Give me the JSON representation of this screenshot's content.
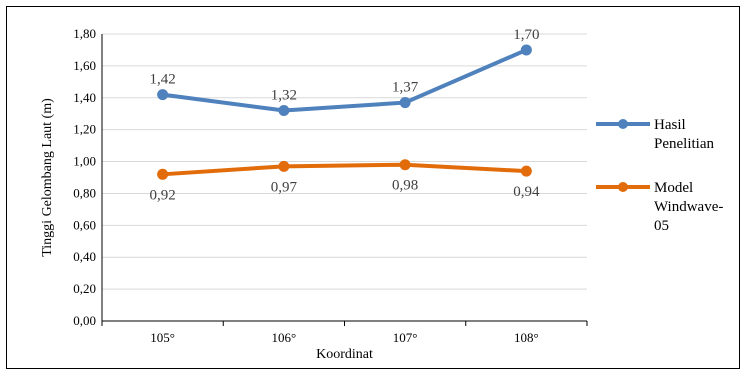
{
  "chart_data": {
    "type": "line",
    "title": "",
    "xlabel": "Koordinat",
    "ylabel": "Tinggi Gelombang Laut (m)",
    "categories": [
      "105°",
      "106°",
      "107°",
      "108°"
    ],
    "ylim": [
      0,
      1.8
    ],
    "yticks": [
      "0,00",
      "0,20",
      "0,40",
      "0,60",
      "0,80",
      "1,00",
      "1,20",
      "1,40",
      "1,60",
      "1,80"
    ],
    "grid": true,
    "legend_position": "right",
    "series": [
      {
        "name": "Hasil Penelitian",
        "legend_lines": [
          "Hasil",
          "Penelitian"
        ],
        "color": "#4f81bd",
        "values": [
          1.42,
          1.32,
          1.37,
          1.7
        ],
        "labels": [
          "1,42",
          "1,32",
          "1,37",
          "1,70"
        ],
        "label_position": "above"
      },
      {
        "name": "Model Windwave-05",
        "legend_lines": [
          "Model",
          "Windwave-",
          "05"
        ],
        "color": "#e36c0a",
        "values": [
          0.92,
          0.97,
          0.98,
          0.94
        ],
        "labels": [
          "0,92",
          "0,97",
          "0,98",
          "0,94"
        ],
        "label_position": "below"
      }
    ]
  }
}
